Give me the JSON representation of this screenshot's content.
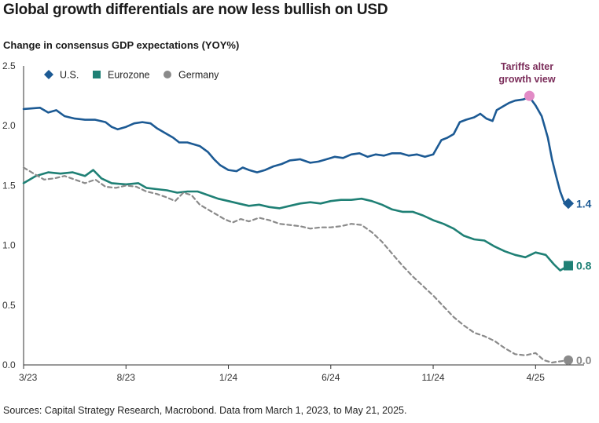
{
  "chart_data": {
    "type": "line",
    "title": "Global growth differentials are now less bullish on USD",
    "ylabel": "Change in consensus GDP expectations (YOY%)",
    "source": "Sources: Capital Strategy Research, Macrobond. Data from March 1, 2023, to May 21, 2025.",
    "ylim": [
      0,
      2.5
    ],
    "yticks": [
      "0.0",
      "0.5",
      "1.0",
      "1.5",
      "2.0",
      "2.5"
    ],
    "xticks": [
      {
        "label": "3/23",
        "month": 0
      },
      {
        "label": "8/23",
        "month": 5
      },
      {
        "label": "1/24",
        "month": 10
      },
      {
        "label": "6/24",
        "month": 15
      },
      {
        "label": "11/24",
        "month": 20
      },
      {
        "label": "4/25",
        "month": 25
      }
    ],
    "xlim": [
      0,
      26.6
    ],
    "legend_placement": "top-left",
    "series": [
      {
        "name": "U.S.",
        "color": "#1c5a94",
        "marker": "diamond",
        "end_label": "1.4",
        "points": [
          [
            0,
            2.14
          ],
          [
            0.8,
            2.15
          ],
          [
            1.2,
            2.11
          ],
          [
            1.6,
            2.13
          ],
          [
            2.0,
            2.08
          ],
          [
            2.5,
            2.06
          ],
          [
            3.0,
            2.05
          ],
          [
            3.5,
            2.05
          ],
          [
            4.0,
            2.03
          ],
          [
            4.3,
            1.99
          ],
          [
            4.6,
            1.97
          ],
          [
            5.0,
            1.99
          ],
          [
            5.4,
            2.02
          ],
          [
            5.8,
            2.03
          ],
          [
            6.2,
            2.02
          ],
          [
            6.5,
            1.98
          ],
          [
            7.0,
            1.93
          ],
          [
            7.3,
            1.9
          ],
          [
            7.6,
            1.86
          ],
          [
            8.0,
            1.86
          ],
          [
            8.6,
            1.83
          ],
          [
            9.0,
            1.78
          ],
          [
            9.3,
            1.72
          ],
          [
            9.6,
            1.67
          ],
          [
            10.0,
            1.63
          ],
          [
            10.4,
            1.62
          ],
          [
            10.7,
            1.65
          ],
          [
            11.0,
            1.63
          ],
          [
            11.4,
            1.61
          ],
          [
            11.8,
            1.63
          ],
          [
            12.2,
            1.66
          ],
          [
            12.6,
            1.68
          ],
          [
            13.0,
            1.71
          ],
          [
            13.5,
            1.72
          ],
          [
            14.0,
            1.69
          ],
          [
            14.4,
            1.7
          ],
          [
            14.8,
            1.72
          ],
          [
            15.2,
            1.74
          ],
          [
            15.6,
            1.73
          ],
          [
            16.0,
            1.76
          ],
          [
            16.4,
            1.77
          ],
          [
            16.8,
            1.74
          ],
          [
            17.2,
            1.76
          ],
          [
            17.6,
            1.75
          ],
          [
            18.0,
            1.77
          ],
          [
            18.4,
            1.77
          ],
          [
            18.8,
            1.75
          ],
          [
            19.2,
            1.76
          ],
          [
            19.6,
            1.74
          ],
          [
            20.0,
            1.76
          ],
          [
            20.2,
            1.82
          ],
          [
            20.4,
            1.88
          ],
          [
            20.7,
            1.9
          ],
          [
            21.0,
            1.93
          ],
          [
            21.3,
            2.03
          ],
          [
            21.6,
            2.05
          ],
          [
            22.0,
            2.07
          ],
          [
            22.3,
            2.1
          ],
          [
            22.6,
            2.06
          ],
          [
            22.9,
            2.04
          ],
          [
            23.1,
            2.13
          ],
          [
            23.4,
            2.16
          ],
          [
            23.7,
            2.19
          ],
          [
            24.0,
            2.21
          ],
          [
            24.4,
            2.22
          ],
          [
            24.7,
            2.24
          ],
          [
            25.0,
            2.17
          ],
          [
            25.3,
            2.08
          ],
          [
            25.6,
            1.9
          ],
          [
            25.8,
            1.72
          ],
          [
            26.0,
            1.58
          ],
          [
            26.2,
            1.45
          ],
          [
            26.4,
            1.36
          ],
          [
            26.6,
            1.35
          ]
        ]
      },
      {
        "name": "Eurozone",
        "color": "#1f8075",
        "marker": "square",
        "end_label": "0.8",
        "points": [
          [
            0,
            1.52
          ],
          [
            0.6,
            1.58
          ],
          [
            1.2,
            1.61
          ],
          [
            1.8,
            1.6
          ],
          [
            2.4,
            1.61
          ],
          [
            3.0,
            1.58
          ],
          [
            3.4,
            1.63
          ],
          [
            3.8,
            1.56
          ],
          [
            4.3,
            1.52
          ],
          [
            5.0,
            1.51
          ],
          [
            5.6,
            1.52
          ],
          [
            6.0,
            1.48
          ],
          [
            6.5,
            1.47
          ],
          [
            7.0,
            1.46
          ],
          [
            7.5,
            1.44
          ],
          [
            8.0,
            1.45
          ],
          [
            8.5,
            1.45
          ],
          [
            9.0,
            1.42
          ],
          [
            9.5,
            1.39
          ],
          [
            10.0,
            1.37
          ],
          [
            10.5,
            1.35
          ],
          [
            11.0,
            1.33
          ],
          [
            11.5,
            1.34
          ],
          [
            12.0,
            1.32
          ],
          [
            12.5,
            1.31
          ],
          [
            13.0,
            1.33
          ],
          [
            13.5,
            1.35
          ],
          [
            14.0,
            1.36
          ],
          [
            14.5,
            1.35
          ],
          [
            15.0,
            1.37
          ],
          [
            15.5,
            1.38
          ],
          [
            16.0,
            1.38
          ],
          [
            16.5,
            1.39
          ],
          [
            17.0,
            1.37
          ],
          [
            17.5,
            1.34
          ],
          [
            18.0,
            1.3
          ],
          [
            18.5,
            1.28
          ],
          [
            19.0,
            1.28
          ],
          [
            19.5,
            1.25
          ],
          [
            20.0,
            1.21
          ],
          [
            20.5,
            1.18
          ],
          [
            21.0,
            1.14
          ],
          [
            21.5,
            1.08
          ],
          [
            22.0,
            1.05
          ],
          [
            22.5,
            1.04
          ],
          [
            23.0,
            0.99
          ],
          [
            23.5,
            0.95
          ],
          [
            24.0,
            0.92
          ],
          [
            24.5,
            0.9
          ],
          [
            25.0,
            0.94
          ],
          [
            25.5,
            0.92
          ],
          [
            25.9,
            0.84
          ],
          [
            26.2,
            0.79
          ],
          [
            26.6,
            0.83
          ]
        ]
      },
      {
        "name": "Germany",
        "color": "#8a8a8a",
        "marker": "circle",
        "dashed": true,
        "end_label": "0.0",
        "points": [
          [
            0,
            1.65
          ],
          [
            0.5,
            1.6
          ],
          [
            1.0,
            1.55
          ],
          [
            1.5,
            1.56
          ],
          [
            2.0,
            1.58
          ],
          [
            2.5,
            1.55
          ],
          [
            3.0,
            1.52
          ],
          [
            3.5,
            1.55
          ],
          [
            4.0,
            1.49
          ],
          [
            4.5,
            1.48
          ],
          [
            5.0,
            1.5
          ],
          [
            5.5,
            1.49
          ],
          [
            6.0,
            1.45
          ],
          [
            6.5,
            1.43
          ],
          [
            7.0,
            1.4
          ],
          [
            7.4,
            1.37
          ],
          [
            7.8,
            1.44
          ],
          [
            8.2,
            1.42
          ],
          [
            8.6,
            1.34
          ],
          [
            9.0,
            1.3
          ],
          [
            9.4,
            1.26
          ],
          [
            9.8,
            1.22
          ],
          [
            10.2,
            1.19
          ],
          [
            10.6,
            1.22
          ],
          [
            11.0,
            1.2
          ],
          [
            11.5,
            1.23
          ],
          [
            12.0,
            1.21
          ],
          [
            12.5,
            1.18
          ],
          [
            13.0,
            1.17
          ],
          [
            13.5,
            1.16
          ],
          [
            14.0,
            1.14
          ],
          [
            14.5,
            1.15
          ],
          [
            15.0,
            1.15
          ],
          [
            15.5,
            1.16
          ],
          [
            16.0,
            1.18
          ],
          [
            16.5,
            1.17
          ],
          [
            17.0,
            1.11
          ],
          [
            17.5,
            1.03
          ],
          [
            18.0,
            0.93
          ],
          [
            18.5,
            0.83
          ],
          [
            19.0,
            0.74
          ],
          [
            19.5,
            0.66
          ],
          [
            20.0,
            0.58
          ],
          [
            20.5,
            0.49
          ],
          [
            21.0,
            0.4
          ],
          [
            21.5,
            0.33
          ],
          [
            22.0,
            0.27
          ],
          [
            22.5,
            0.24
          ],
          [
            23.0,
            0.2
          ],
          [
            23.5,
            0.14
          ],
          [
            24.0,
            0.09
          ],
          [
            24.5,
            0.08
          ],
          [
            25.0,
            0.1
          ],
          [
            25.4,
            0.04
          ],
          [
            25.8,
            0.02
          ],
          [
            26.2,
            0.03
          ],
          [
            26.6,
            0.04
          ]
        ]
      }
    ],
    "annotation": {
      "lines": [
        "Tariffs alter",
        "growth view"
      ],
      "x": 24.7,
      "y": 2.25,
      "color": "#e28bc6"
    }
  }
}
